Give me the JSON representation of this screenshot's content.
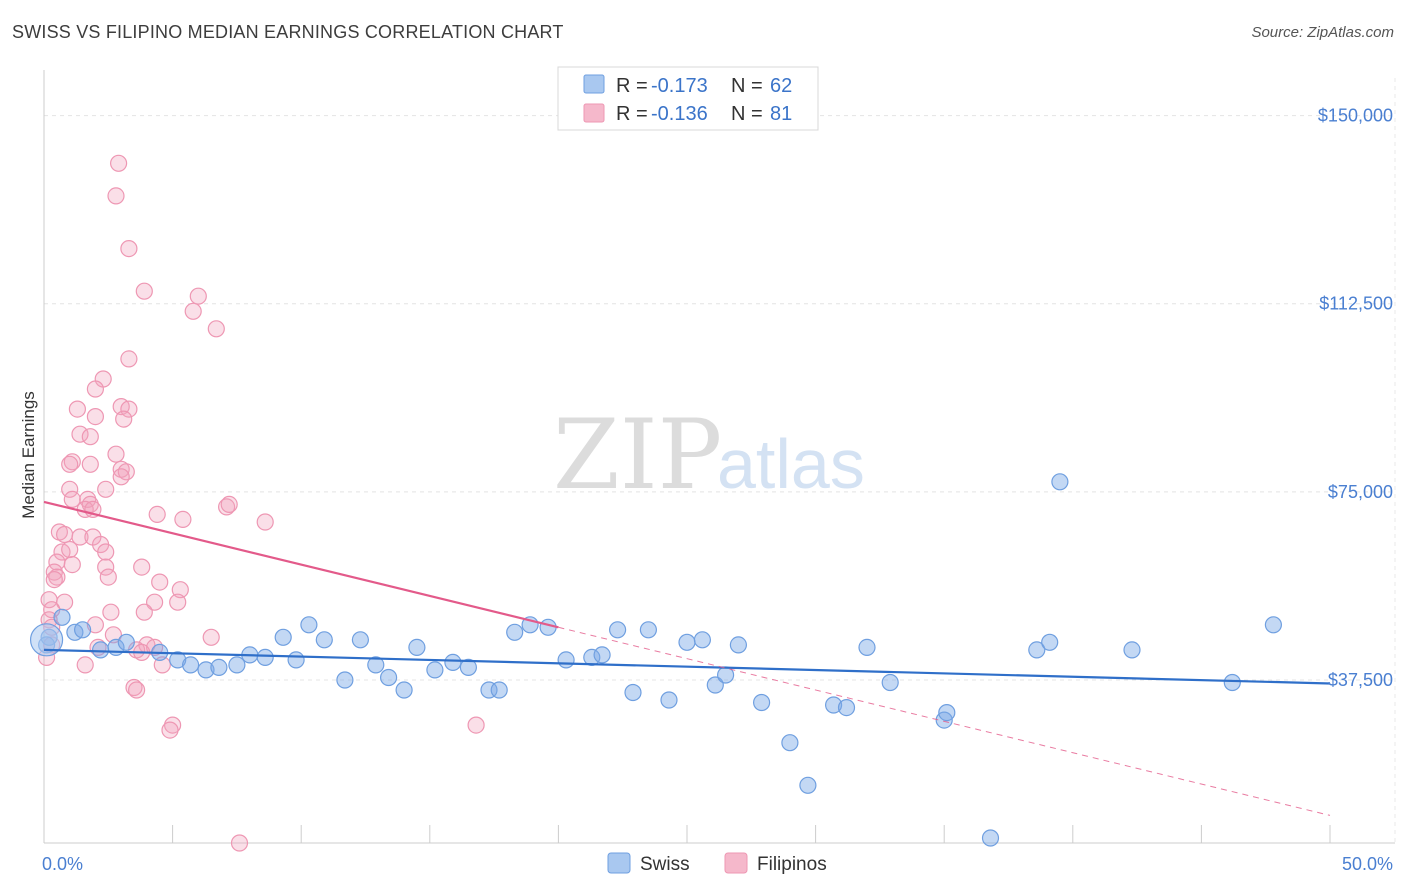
{
  "header": {
    "title": "SWISS VS FILIPINO MEDIAN EARNINGS CORRELATION CHART",
    "source": "Source: ZipAtlas.com"
  },
  "watermark": {
    "part1": "ZIP",
    "part2": "atlas"
  },
  "legend": {
    "rows": [
      {
        "r_label": "R =",
        "r_value": "-0.173",
        "n_label": "N =",
        "n_value": "62",
        "color": "#a9c8f0"
      },
      {
        "r_label": "R =",
        "r_value": "-0.136",
        "n_label": "N =",
        "n_value": "81",
        "color": "#f5b8cb"
      }
    ]
  },
  "chart_data": {
    "type": "scatter",
    "ylabel": "Median Earnings",
    "xlim": [
      0,
      50
    ],
    "ylim": [
      5000,
      157500
    ],
    "y_ticks": [
      {
        "value": 37500,
        "label": "$37,500"
      },
      {
        "value": 75000,
        "label": "$75,000"
      },
      {
        "value": 112500,
        "label": "$112,500"
      },
      {
        "value": 150000,
        "label": "$150,000"
      }
    ],
    "x_tick_labels": [
      {
        "value": 0,
        "label": "0.0%"
      },
      {
        "value": 50,
        "label": "50.0%"
      }
    ],
    "grid": true,
    "series": [
      {
        "name": "Swiss",
        "color": "#7aa9e6",
        "line_color": "#2f6fc9",
        "trend": {
          "x0": 0,
          "y0": 43500,
          "x1": 50,
          "y1": 36800,
          "solid_to": 50
        },
        "points": [
          [
            0.2,
            46000
          ],
          [
            0.7,
            50000
          ],
          [
            1.2,
            47000
          ],
          [
            1.5,
            47500
          ],
          [
            2.2,
            43500
          ],
          [
            2.8,
            44000
          ],
          [
            3.2,
            45000
          ],
          [
            4.5,
            43000
          ],
          [
            5.2,
            41500
          ],
          [
            5.7,
            40500
          ],
          [
            6.3,
            39500
          ],
          [
            6.8,
            40000
          ],
          [
            7.5,
            40500
          ],
          [
            8.0,
            42500
          ],
          [
            8.6,
            42000
          ],
          [
            9.3,
            46000
          ],
          [
            9.8,
            41500
          ],
          [
            10.3,
            48500
          ],
          [
            10.9,
            45500
          ],
          [
            11.7,
            37500
          ],
          [
            12.3,
            45500
          ],
          [
            12.9,
            40500
          ],
          [
            13.4,
            38000
          ],
          [
            14.0,
            35500
          ],
          [
            14.5,
            44000
          ],
          [
            15.2,
            39500
          ],
          [
            15.9,
            41000
          ],
          [
            16.5,
            40000
          ],
          [
            17.3,
            35500
          ],
          [
            17.7,
            35500
          ],
          [
            18.3,
            47000
          ],
          [
            18.9,
            48500
          ],
          [
            19.6,
            48000
          ],
          [
            20.3,
            41500
          ],
          [
            21.3,
            42000
          ],
          [
            21.7,
            42500
          ],
          [
            22.3,
            47500
          ],
          [
            22.9,
            35000
          ],
          [
            23.5,
            47500
          ],
          [
            24.3,
            33500
          ],
          [
            25.0,
            45000
          ],
          [
            25.6,
            45500
          ],
          [
            26.1,
            36500
          ],
          [
            26.5,
            38500
          ],
          [
            27.0,
            44500
          ],
          [
            27.9,
            33000
          ],
          [
            29.0,
            25000
          ],
          [
            29.7,
            16500
          ],
          [
            30.7,
            32500
          ],
          [
            31.2,
            32000
          ],
          [
            32.0,
            44000
          ],
          [
            32.9,
            37000
          ],
          [
            35.0,
            29500
          ],
          [
            35.1,
            31000
          ],
          [
            38.6,
            43500
          ],
          [
            42.3,
            43500
          ],
          [
            36.8,
            6000
          ],
          [
            39.1,
            45000
          ],
          [
            39.5,
            77000
          ],
          [
            46.2,
            37000
          ],
          [
            47.8,
            48500
          ],
          [
            0.1,
            44500
          ]
        ]
      },
      {
        "name": "Filipinos",
        "color": "#f2a3bc",
        "line_color": "#e35a8a",
        "trend": {
          "x0": 0,
          "y0": 73000,
          "x1": 50,
          "y1": 10500,
          "solid_to": 20
        },
        "points": [
          [
            2.9,
            140500
          ],
          [
            2.8,
            134000
          ],
          [
            3.3,
            123500
          ],
          [
            3.9,
            115000
          ],
          [
            6.0,
            114000
          ],
          [
            5.8,
            111000
          ],
          [
            6.7,
            107500
          ],
          [
            3.3,
            101500
          ],
          [
            2.3,
            97500
          ],
          [
            2.0,
            95500
          ],
          [
            1.3,
            91500
          ],
          [
            3.0,
            92000
          ],
          [
            3.3,
            91500
          ],
          [
            2.0,
            90000
          ],
          [
            3.1,
            89500
          ],
          [
            1.4,
            86500
          ],
          [
            1.8,
            86000
          ],
          [
            2.8,
            82500
          ],
          [
            1.1,
            81000
          ],
          [
            1.0,
            80500
          ],
          [
            1.8,
            80500
          ],
          [
            3.0,
            79500
          ],
          [
            3.2,
            79000
          ],
          [
            3.0,
            78000
          ],
          [
            1.0,
            75500
          ],
          [
            2.4,
            75500
          ],
          [
            1.1,
            73500
          ],
          [
            1.7,
            73500
          ],
          [
            1.8,
            72500
          ],
          [
            1.6,
            71500
          ],
          [
            1.9,
            71500
          ],
          [
            7.1,
            72000
          ],
          [
            7.2,
            72500
          ],
          [
            4.4,
            70500
          ],
          [
            5.4,
            69500
          ],
          [
            8.6,
            69000
          ],
          [
            0.6,
            67000
          ],
          [
            0.8,
            66500
          ],
          [
            1.4,
            66000
          ],
          [
            1.9,
            66000
          ],
          [
            2.2,
            64500
          ],
          [
            0.7,
            63000
          ],
          [
            1.0,
            63500
          ],
          [
            2.4,
            63000
          ],
          [
            0.5,
            61000
          ],
          [
            1.1,
            60500
          ],
          [
            2.4,
            60000
          ],
          [
            3.8,
            60000
          ],
          [
            0.4,
            59000
          ],
          [
            0.5,
            58000
          ],
          [
            2.5,
            58000
          ],
          [
            0.4,
            57500
          ],
          [
            4.5,
            57000
          ],
          [
            5.3,
            55500
          ],
          [
            0.2,
            53500
          ],
          [
            0.8,
            53000
          ],
          [
            4.3,
            53000
          ],
          [
            5.2,
            53000
          ],
          [
            0.3,
            51500
          ],
          [
            2.6,
            51000
          ],
          [
            3.9,
            51000
          ],
          [
            0.2,
            49500
          ],
          [
            0.3,
            48000
          ],
          [
            2.0,
            48500
          ],
          [
            2.7,
            46500
          ],
          [
            6.5,
            46000
          ],
          [
            4.0,
            44500
          ],
          [
            4.3,
            44000
          ],
          [
            3.6,
            43500
          ],
          [
            3.8,
            43000
          ],
          [
            0.1,
            42000
          ],
          [
            4.6,
            40500
          ],
          [
            3.5,
            36000
          ],
          [
            3.6,
            35500
          ],
          [
            5.0,
            28500
          ],
          [
            4.9,
            27500
          ],
          [
            16.8,
            28500
          ],
          [
            7.6,
            5000
          ],
          [
            0.3,
            44500
          ],
          [
            1.6,
            40500
          ],
          [
            2.1,
            44000
          ]
        ]
      }
    ]
  }
}
